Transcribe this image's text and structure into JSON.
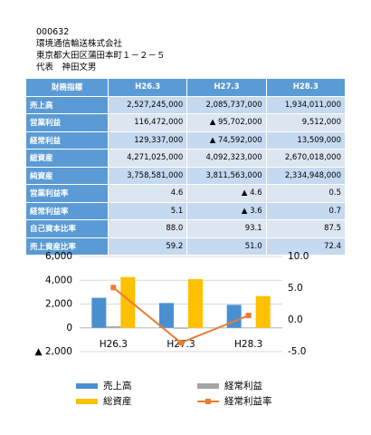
{
  "header": {
    "code": "000632",
    "company": "環境通信輸送株式会社",
    "address": "東京都大田区蒲田本町１－２－５",
    "representative": "代表　神田文男"
  },
  "table": {
    "columns": [
      "財務指標",
      "H26.3",
      "H27.3",
      "H28.3"
    ],
    "rows": [
      [
        "売上高",
        "2,527,245,000",
        "2,085,737,000",
        "1,934,011,000"
      ],
      [
        "営業利益",
        "116,472,000",
        "▲ 95,702,000",
        "9,512,000"
      ],
      [
        "経常利益",
        "129,337,000",
        "▲ 74,592,000",
        "13,509,000"
      ],
      [
        "総資産",
        "4,271,025,000",
        "4,092,323,000",
        "2,670,018,000"
      ],
      [
        "純資産",
        "3,758,581,000",
        "3,811,563,000",
        "2,334,948,000"
      ],
      [
        "営業利益率",
        "4.6",
        "▲ 4.6",
        "0.5"
      ],
      [
        "経常利益率",
        "5.1",
        "▲ 3.6",
        "0.7"
      ],
      [
        "自己資本比率",
        "88.0",
        "93.1",
        "87.5"
      ],
      [
        "売上資産比率",
        "59.2",
        "51.0",
        "72.4"
      ]
    ]
  },
  "chart_data": {
    "type": "bar",
    "categories": [
      "H26.3",
      "H27.3",
      "H28.3"
    ],
    "ylim": [
      -2000,
      6000
    ],
    "yticks": [
      {
        "value": -2000,
        "label": "▲ 2,000"
      },
      0,
      {
        "value": 2000,
        "label": "2,000"
      },
      {
        "value": 4000,
        "label": "4,000"
      },
      {
        "value": 6000,
        "label": "6,000"
      }
    ],
    "y2lim": [
      -5,
      10
    ],
    "y2ticks": [
      {
        "value": -5,
        "label": "-5.0"
      },
      {
        "value": 0,
        "label": "0.0"
      },
      {
        "value": 5,
        "label": "5.0"
      },
      {
        "value": 10,
        "label": "10.0"
      }
    ],
    "grid": true,
    "series": [
      {
        "name": "売上高",
        "color": "#4a90d0",
        "values": [
          2527,
          2086,
          1934
        ]
      },
      {
        "name": "経常利益",
        "color": "#a5a5a5",
        "values": [
          129,
          -75,
          14
        ]
      },
      {
        "name": "総資産",
        "color": "#ffc000",
        "values": [
          4271,
          4092,
          2670
        ]
      },
      {
        "name": "経常利益率",
        "color": "#ed7d31",
        "type": "line",
        "axis": "y2",
        "values": [
          5.1,
          -3.6,
          0.7
        ]
      }
    ]
  }
}
